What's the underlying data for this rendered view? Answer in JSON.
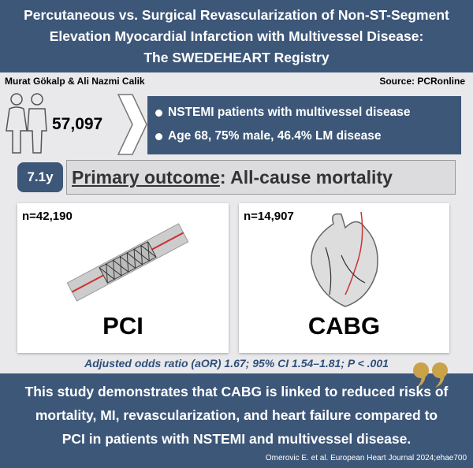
{
  "header": {
    "title_lines": [
      "Percutaneous vs. Surgical Revascularization of Non-ST-Segment",
      "Elevation Myocardial Infarction with Multivessel Disease:",
      "The SWEDEHEART Registry"
    ]
  },
  "authors": "Murat Gökalp & Ali Nazmi Calik",
  "source": "Source: PCRonline",
  "population": {
    "count": "57,097",
    "bullets": [
      "NSTEMI patients with multivessel disease",
      "Age 68, 75% male, 46.4% LM disease"
    ]
  },
  "follow_up": "7.1y",
  "outcome": {
    "label": "Primary outcome",
    "text": ": All-cause mortality"
  },
  "arms": [
    {
      "n": "n=42,190",
      "label": "PCI"
    },
    {
      "n": "n=14,907",
      "label": "CABG"
    }
  ],
  "result": "Adjusted odds ratio (aOR) 1.67; 95% CI 1.54–1.81; P < .001",
  "conclusion_lines": [
    "This study demonstrates that CABG is linked to reduced risks of",
    "mortality, MI, revascularization, and heart failure compared to",
    "PCI in patients with NSTEMI and multivessel disease."
  ],
  "citation": "Omerovic E. et al. European Heart Journal 2024;ehae700"
}
